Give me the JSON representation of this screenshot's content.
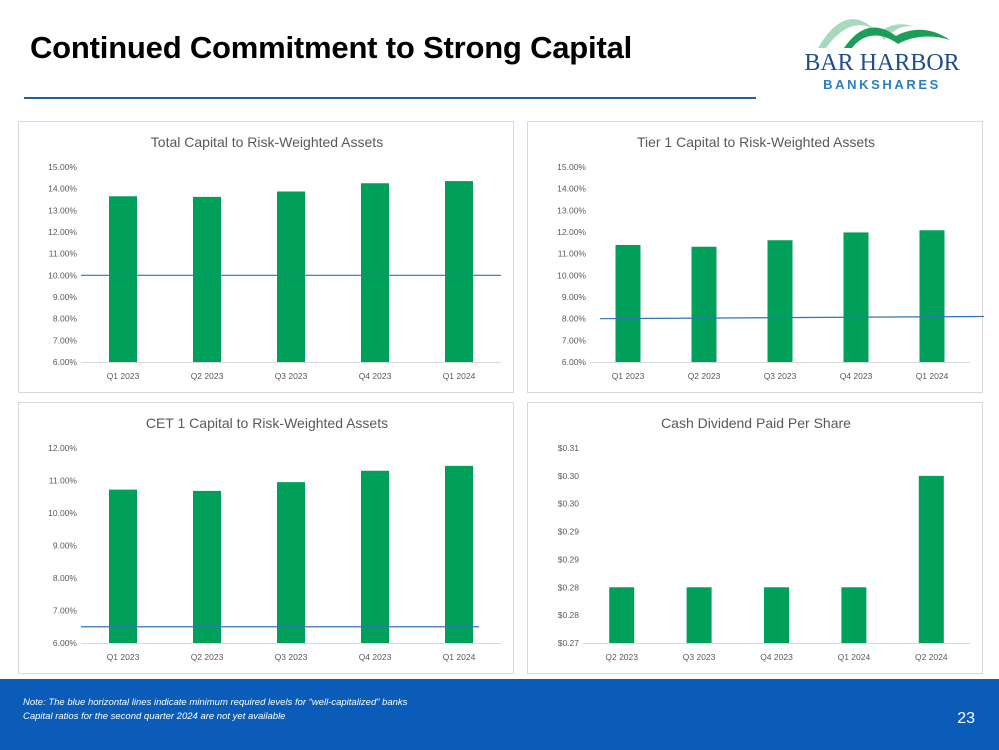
{
  "slide": {
    "title": "Continued Commitment to Strong Capital",
    "page_number": "23",
    "notes": [
      "Note:  The blue horizontal lines indicate minimum required levels for “well-capitalized” banks",
      "Capital ratios for the second quarter 2024 are not yet available"
    ]
  },
  "logo": {
    "line1": "BAR HARBOR",
    "line2": "BANKSHARES"
  },
  "colors": {
    "bar": "#00a05a",
    "threshold": "#2e75b6",
    "title_rule": "#1f5fa8",
    "footer": "#0a5cb8",
    "logo_text": "#1f4e8c",
    "logo_sub": "#2a7fc4"
  },
  "chart_data": [
    {
      "type": "bar",
      "title": "Total Capital to Risk-Weighted Assets",
      "categories": [
        "Q1 2023",
        "Q2 2023",
        "Q3 2023",
        "Q4 2023",
        "Q1 2024"
      ],
      "values": [
        13.65,
        13.62,
        13.87,
        14.25,
        14.35
      ],
      "ylim": [
        6.0,
        15.0
      ],
      "yticks": [
        "6.00%",
        "7.00%",
        "8.00%",
        "9.00%",
        "10.00%",
        "11.00%",
        "12.00%",
        "13.00%",
        "14.00%",
        "15.00%"
      ],
      "threshold": 10.0,
      "xlabel": "",
      "ylabel": ""
    },
    {
      "type": "bar",
      "title": "Tier 1 Capital to Risk-Weighted Assets",
      "categories": [
        "Q1 2023",
        "Q2 2023",
        "Q3 2023",
        "Q4 2023",
        "Q1 2024"
      ],
      "values": [
        11.4,
        11.32,
        11.62,
        11.98,
        12.08
      ],
      "ylim": [
        6.0,
        15.0
      ],
      "yticks": [
        "6.00%",
        "7.00%",
        "8.00%",
        "9.00%",
        "10.00%",
        "11.00%",
        "12.00%",
        "13.00%",
        "14.00%",
        "15.00%"
      ],
      "threshold": 8.0,
      "xlabel": "",
      "ylabel": ""
    },
    {
      "type": "bar",
      "title": "CET 1 Capital to Risk-Weighted Assets",
      "categories": [
        "Q1 2023",
        "Q2 2023",
        "Q3 2023",
        "Q4 2023",
        "Q1 2024"
      ],
      "values": [
        10.72,
        10.68,
        10.95,
        11.3,
        11.45
      ],
      "ylim": [
        6.0,
        12.0
      ],
      "yticks": [
        "6.00%",
        "7.00%",
        "8.00%",
        "9.00%",
        "10.00%",
        "11.00%",
        "12.00%"
      ],
      "threshold": 6.5,
      "xlabel": "",
      "ylabel": ""
    },
    {
      "type": "bar",
      "title": "Cash Dividend Paid Per Share",
      "categories": [
        "Q2 2023",
        "Q3 2023",
        "Q4 2023",
        "Q1 2024",
        "Q2 2024"
      ],
      "values": [
        0.28,
        0.28,
        0.28,
        0.28,
        0.3
      ],
      "ylim": [
        0.27,
        0.305
      ],
      "yticks": [
        "$0.27",
        "$0.28",
        "$0.28",
        "$0.29",
        "$0.29",
        "$0.30",
        "$0.30",
        "$0.31"
      ],
      "threshold": null,
      "xlabel": "",
      "ylabel": ""
    }
  ]
}
